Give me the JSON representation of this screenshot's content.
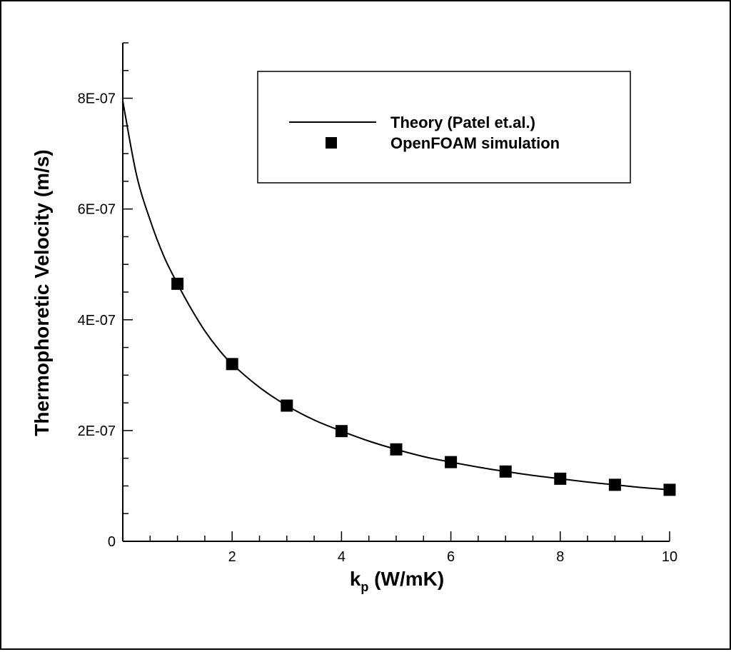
{
  "chart_data": {
    "type": "line",
    "title": "",
    "xlabel": "k",
    "xlabel_subscript": "p",
    "xlabel_unit": " (W/mK)",
    "ylabel": "Thermophoretic Velocity (m/s)",
    "xlim": [
      0.0,
      10.0
    ],
    "ylim": [
      0.0,
      9e-07
    ],
    "x_tick_values": [
      2,
      4,
      6,
      8,
      10
    ],
    "x_tick_labels": [
      "2",
      "4",
      "6",
      "8",
      "10"
    ],
    "y_tick_values": [
      0,
      2e-07,
      4e-07,
      6e-07,
      8e-07
    ],
    "y_tick_labels": [
      "0",
      "2E-07",
      "4E-07",
      "6E-07",
      "8E-07"
    ],
    "grid": false,
    "legend_position": "top-right",
    "series": [
      {
        "name": "Theory (Patel et.al.)",
        "kind": "line",
        "color": "#000000",
        "x": [
          0.0,
          0.25,
          0.5,
          0.75,
          1.0,
          1.25,
          1.5,
          1.75,
          2.0,
          2.5,
          3.0,
          3.5,
          4.0,
          4.5,
          5.0,
          5.5,
          6.0,
          6.5,
          7.0,
          7.5,
          8.0,
          8.5,
          9.0,
          9.5,
          10.0
        ],
        "y": [
          7.95e-07,
          6.62e-07,
          5.8e-07,
          5.15e-07,
          4.65e-07,
          4.2e-07,
          3.8e-07,
          3.47e-07,
          3.2e-07,
          2.78e-07,
          2.45e-07,
          2.19e-07,
          1.99e-07,
          1.81e-07,
          1.66e-07,
          1.53e-07,
          1.43e-07,
          1.34e-07,
          1.26e-07,
          1.19e-07,
          1.13e-07,
          1.07e-07,
          1.02e-07,
          9.7e-08,
          9.3e-08
        ]
      },
      {
        "name": "OpenFOAM simulation",
        "kind": "scatter",
        "marker": "square",
        "color": "#000000",
        "x": [
          1,
          2,
          3,
          4,
          5,
          6,
          7,
          8,
          9,
          10
        ],
        "y": [
          4.65e-07,
          3.2e-07,
          2.45e-07,
          1.99e-07,
          1.66e-07,
          1.43e-07,
          1.26e-07,
          1.13e-07,
          1.02e-07,
          9.3e-08
        ]
      }
    ]
  }
}
